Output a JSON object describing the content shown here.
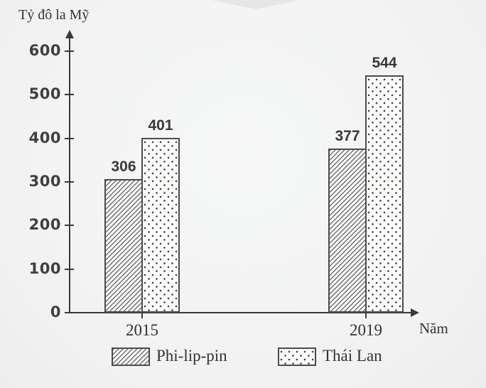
{
  "chart_data": {
    "type": "bar",
    "title": "",
    "ylabel": "Tỷ đô la Mỹ",
    "xlabel": "Năm",
    "categories": [
      "2015",
      "2019"
    ],
    "series": [
      {
        "name": "Phi-lip-pin",
        "pattern": "hatch",
        "values": [
          306,
          377
        ]
      },
      {
        "name": "Thái Lan",
        "pattern": "dots",
        "values": [
          401,
          544
        ]
      }
    ],
    "ylim": [
      0,
      600
    ],
    "yticks": [
      0,
      100,
      200,
      300,
      400,
      500,
      600
    ],
    "bar_value_labels_shown": true,
    "legend_position": "bottom",
    "grid": false
  },
  "colors": {
    "paper": "#f3f4f4",
    "ink": "#3a3a3a",
    "bar_fill": "#fbfbfa",
    "bar_border": "#4b4b4b"
  }
}
